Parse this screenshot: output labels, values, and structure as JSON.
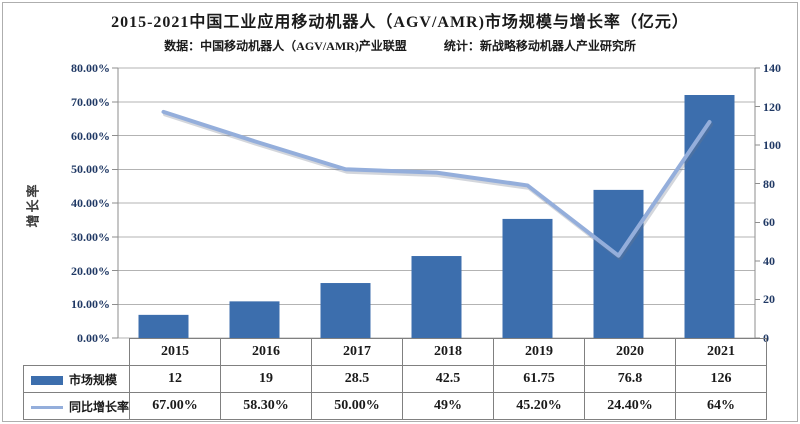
{
  "title": "2015-2021中国工业应用移动机器人（AGV/AMR)市场规模与增长率（亿元）",
  "subtitle": {
    "data_source": "数据：中国移动机器人（AGV/AMR)产业联盟",
    "statistics": "统计：新战略移动机器人产业研究所"
  },
  "left_axis": {
    "title": "增长率",
    "tick_labels": [
      "80.00%",
      "70.00%",
      "60.00%",
      "50.00%",
      "40.00%",
      "30.00%",
      "20.00%",
      "10.00%",
      "0.00%"
    ],
    "min": 0,
    "max": 80
  },
  "right_axis": {
    "tick_labels": [
      "140",
      "120",
      "100",
      "80",
      "60",
      "40",
      "20",
      "0"
    ],
    "min": 0,
    "max": 140
  },
  "chart_data": {
    "type": "bar+line",
    "title": "2015-2021中国工业应用移动机器人（AGV/AMR)市场规模与增长率（亿元）",
    "categories": [
      "2015",
      "2016",
      "2017",
      "2018",
      "2019",
      "2020",
      "2021"
    ],
    "series": [
      {
        "name": "市场规模",
        "kind": "bar",
        "axis": "right",
        "values": [
          12,
          19,
          28.5,
          42.5,
          61.75,
          76.8,
          126
        ],
        "display": [
          "12",
          "19",
          "28.5",
          "42.5",
          "61.75",
          "76.8",
          "126"
        ],
        "color": "#3c6ead"
      },
      {
        "name": "同比增长率",
        "kind": "line",
        "axis": "left",
        "values": [
          67,
          58.3,
          50,
          49,
          45.2,
          24.4,
          64
        ],
        "display": [
          "67.00%",
          "58.30%",
          "50.00%",
          "49%",
          "45.20%",
          "24.40%",
          "64%"
        ],
        "color": "#94aedb"
      }
    ],
    "left_ylim": [
      0,
      80
    ],
    "right_ylim": [
      0,
      140
    ],
    "grid": true,
    "legend_position": "data-table-left"
  },
  "colors": {
    "bar": "#3c6ead",
    "line": "#94aedb",
    "grid": "#b3b3b3",
    "axis_line": "#8e8e8e",
    "tick_text": "#1f3864",
    "table_border": "#808080",
    "frame": "#aeaeae"
  }
}
